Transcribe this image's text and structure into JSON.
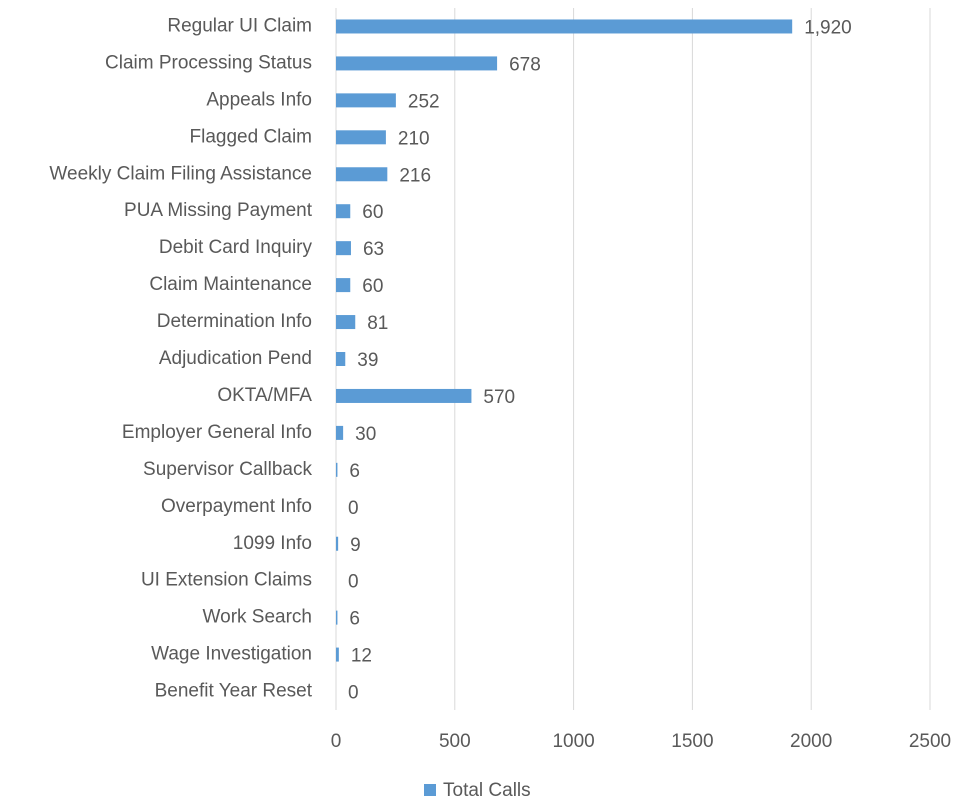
{
  "chart_data": {
    "type": "barh",
    "categories": [
      "Regular UI Claim",
      "Claim Processing Status",
      "Appeals Info",
      "Flagged Claim",
      "Weekly Claim Filing Assistance",
      "PUA Missing Payment",
      "Debit Card Inquiry",
      "Claim Maintenance",
      "Determination Info",
      "Adjudication Pend",
      "OKTA/MFA",
      "Employer General Info",
      "Supervisor Callback",
      "Overpayment Info",
      "1099 Info",
      "UI Extension Claims",
      "Work Search",
      "Wage Investigation",
      "Benefit Year Reset"
    ],
    "series": [
      {
        "name": "Total Calls",
        "color": "#5b9bd5",
        "values": [
          1920,
          678,
          252,
          210,
          216,
          60,
          63,
          60,
          81,
          39,
          570,
          30,
          6,
          0,
          9,
          0,
          6,
          12,
          0
        ],
        "value_labels": [
          "1,920",
          "678",
          "252",
          "210",
          "216",
          "60",
          "63",
          "60",
          "81",
          "39",
          "570",
          "30",
          "6",
          "0",
          "9",
          "0",
          "6",
          "12",
          "0"
        ]
      }
    ],
    "xlim": [
      0,
      2500
    ],
    "xticks": [
      0,
      500,
      1000,
      1500,
      2000,
      2500
    ],
    "grid": true,
    "legend": "bottom"
  }
}
